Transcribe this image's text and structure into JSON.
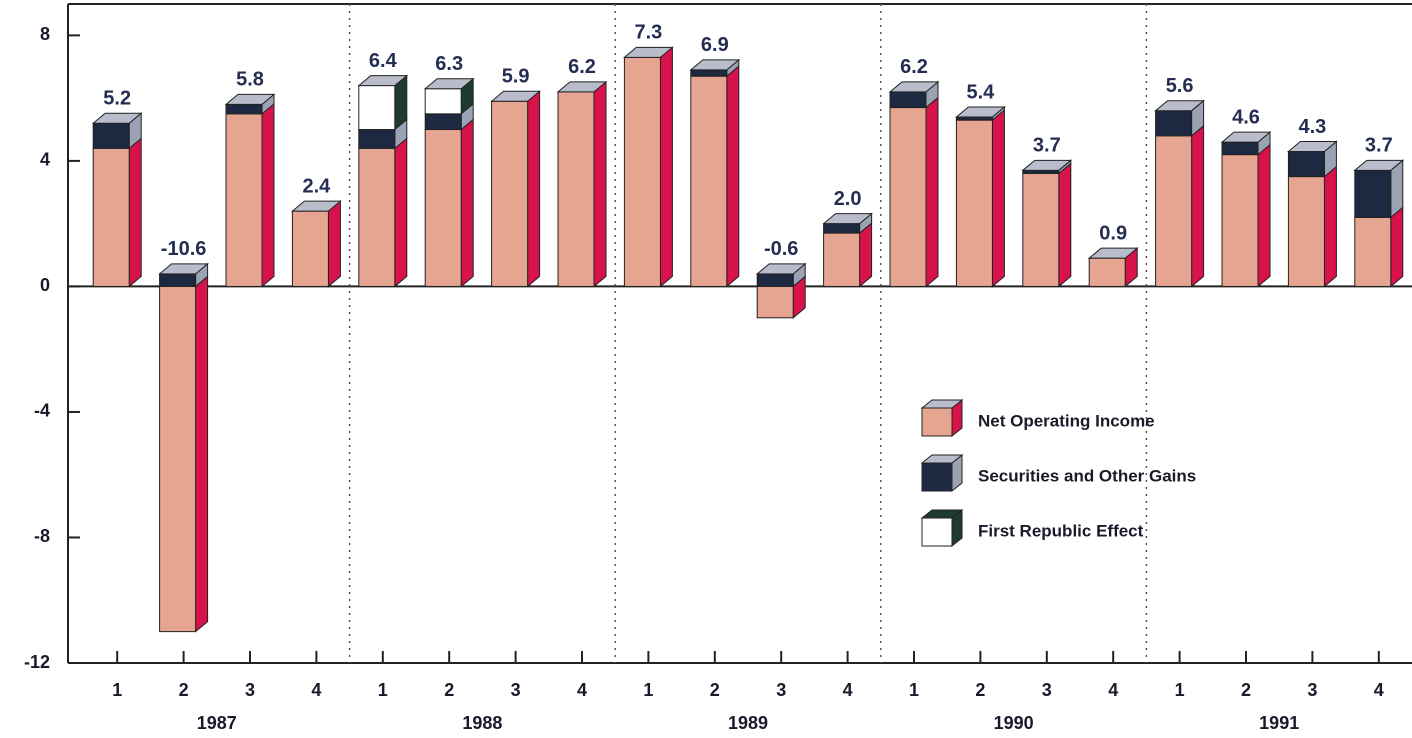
{
  "chart_data": {
    "type": "stacked-bar-3d",
    "categories": [
      "1",
      "2",
      "3",
      "4",
      "1",
      "2",
      "3",
      "4",
      "1",
      "2",
      "3",
      "4",
      "1",
      "2",
      "3",
      "4",
      "1",
      "2",
      "3",
      "4"
    ],
    "years": [
      "1987",
      "1988",
      "1989",
      "1990",
      "1991"
    ],
    "series": [
      {
        "name": "Net Operating Income",
        "color": "#e6a590",
        "side_color": "#d8124a",
        "values": [
          4.4,
          -11.0,
          5.5,
          2.4,
          4.4,
          5.0,
          5.9,
          6.2,
          7.3,
          6.7,
          -1.0,
          1.7,
          5.7,
          5.3,
          3.6,
          0.9,
          4.8,
          4.2,
          3.5,
          2.2
        ]
      },
      {
        "name": "Securities and Other Gains",
        "color": "#1c2940",
        "side_color": "#9aa2b4",
        "values": [
          0.8,
          0.4,
          0.3,
          0,
          0.6,
          0.5,
          0,
          0,
          0,
          0.2,
          0.4,
          0.3,
          0.5,
          0.1,
          0.1,
          0,
          0.8,
          0.4,
          0.8,
          1.5
        ]
      },
      {
        "name": "First Republic Effect",
        "color": "#ffffff",
        "side_color": "#1f3b30",
        "values": [
          0,
          0,
          0,
          0,
          1.4,
          0.8,
          0,
          0,
          0,
          0,
          0,
          0,
          0,
          0,
          0,
          0,
          0,
          0,
          0,
          0
        ]
      }
    ],
    "totals": [
      5.2,
      -10.6,
      5.8,
      2.4,
      6.4,
      6.3,
      5.9,
      6.2,
      7.3,
      6.9,
      -0.6,
      2.0,
      6.2,
      5.4,
      3.7,
      0.9,
      5.6,
      4.6,
      4.3,
      3.7
    ],
    "total_labels": [
      "5.2",
      "-10.6",
      "5.8",
      "2.4",
      "6.4",
      "6.3",
      "5.9",
      "6.2",
      "7.3",
      "6.9",
      "-0.6",
      "2.0",
      "6.2",
      "5.4",
      "3.7",
      "0.9",
      "5.6",
      "4.6",
      "4.3",
      "3.7"
    ],
    "ylim": [
      -12,
      9
    ],
    "yticks": [
      8,
      4,
      0,
      -4,
      -8,
      -12
    ]
  }
}
